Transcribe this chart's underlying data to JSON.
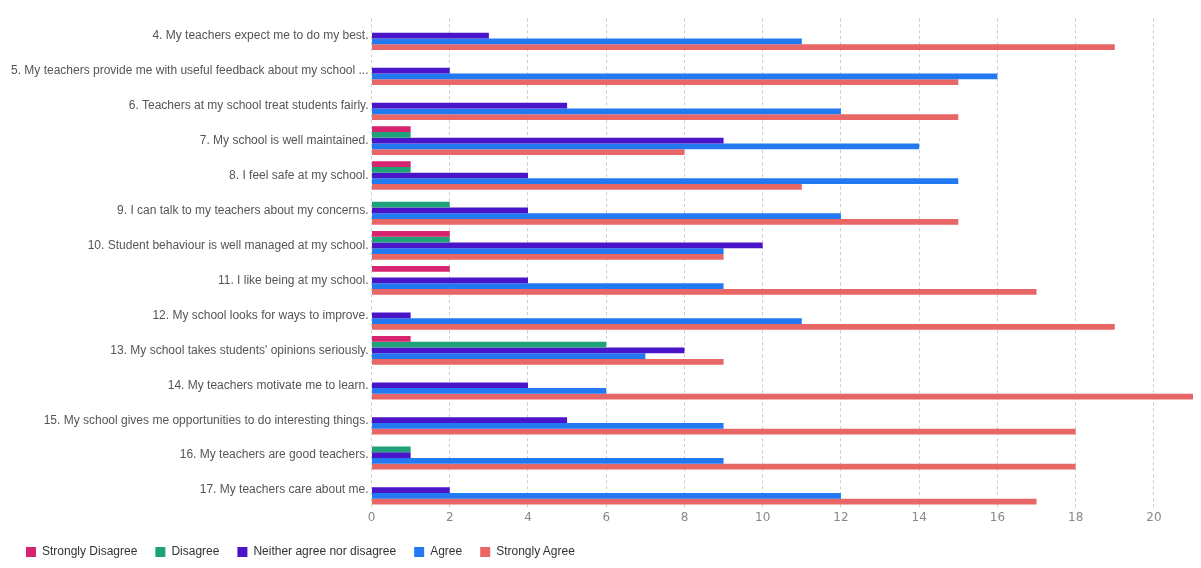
{
  "chart_data": {
    "type": "bar",
    "orientation": "horizontal",
    "categories": [
      "4. My teachers expect me to do my best.",
      "5. My teachers provide me with useful feedback about my school ...",
      "6. Teachers at my school treat students fairly.",
      "7. My school is well maintained.",
      "8. I feel safe at my school.",
      "9. I can talk to my teachers about my concerns.",
      "10. Student behaviour is well managed at my school.",
      "11. I like being at my school.",
      "12. My school looks for ways to improve.",
      "13. My school takes students' opinions seriously.",
      "14. My teachers motivate me to learn.",
      "15. My school gives me opportunities to do interesting things.",
      "16. My teachers are good teachers.",
      "17. My teachers care about me."
    ],
    "series": [
      {
        "name": "Strongly Disagree",
        "color": "#d6246e",
        "values": [
          0,
          0,
          0,
          1,
          1,
          0,
          2,
          2,
          0,
          1,
          0,
          0,
          0,
          0
        ]
      },
      {
        "name": "Disagree",
        "color": "#1fa17a",
        "values": [
          0,
          0,
          0,
          1,
          1,
          2,
          2,
          0,
          0,
          6,
          0,
          0,
          1,
          0
        ]
      },
      {
        "name": "Neither agree nor disagree",
        "color": "#4a14c8",
        "values": [
          3,
          2,
          5,
          9,
          4,
          4,
          10,
          4,
          1,
          8,
          4,
          5,
          1,
          2
        ]
      },
      {
        "name": "Agree",
        "color": "#2379f2",
        "values": [
          11,
          16,
          12,
          14,
          15,
          12,
          9,
          9,
          11,
          7,
          6,
          9,
          9,
          12
        ]
      },
      {
        "name": "Strongly Agree",
        "color": "#e86666",
        "values": [
          19,
          15,
          15,
          8,
          11,
          15,
          9,
          17,
          19,
          9,
          21,
          18,
          18,
          17
        ]
      }
    ],
    "xlim": [
      0,
      21
    ],
    "xticks": [
      0,
      2,
      4,
      6,
      8,
      10,
      12,
      14,
      16,
      18,
      20
    ],
    "grid": "x",
    "legend": "bottom left"
  }
}
